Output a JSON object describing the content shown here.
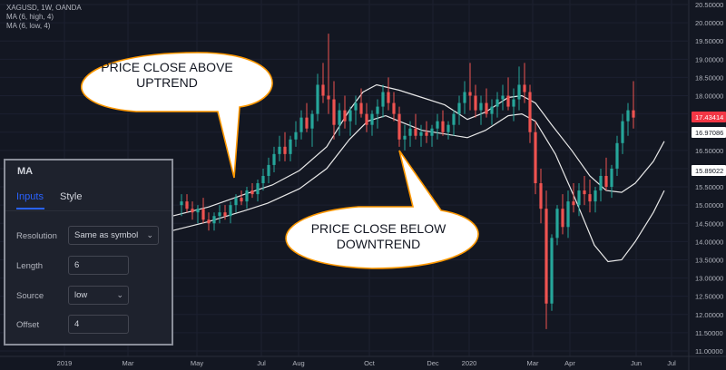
{
  "header": {
    "symbol": "XAGUSD, 1W, OANDA",
    "indicator_high": "MA (6, high, 4)",
    "indicator_low": "MA (6, low, 4)"
  },
  "chart_data": {
    "type": "candlestick",
    "y_range": [
      10.6,
      20.7
    ],
    "y_ticks": [
      "20.50000",
      "20.00000",
      "19.50000",
      "19.00000",
      "18.50000",
      "18.00000",
      "17.50000",
      "17.00000",
      "16.50000",
      "16.00000",
      "15.50000",
      "15.00000",
      "14.50000",
      "14.00000",
      "13.50000",
      "13.00000",
      "12.50000",
      "12.00000",
      "11.50000",
      "11.00000"
    ],
    "x_ticks": [
      "2019",
      "Mar",
      "May",
      "Jul",
      "Aug",
      "Oct",
      "Dec",
      "2020",
      "Mar",
      "Apr",
      "Jun",
      "Jul"
    ],
    "price_badges": [
      {
        "label": "17.43414",
        "bg": "#f23645",
        "fg": "#ffffff"
      },
      {
        "label": "16.97086",
        "bg": "#ffffff",
        "fg": "#131722"
      },
      {
        "label": "15.89022",
        "bg": "#ffffff",
        "fg": "#131722"
      }
    ],
    "up_color": "#26a69a",
    "down_color": "#ef5350",
    "ma_color": "#e8e8e8"
  },
  "callouts": {
    "upper_line1": "PRICE CLOSE ABOVE",
    "upper_line2": "UPTREND",
    "lower_line1": "PRICE CLOSE BELOW",
    "lower_line2": "DOWNTREND"
  },
  "settings_panel": {
    "title": "MA",
    "tab_inputs": "Inputs",
    "tab_style": "Style",
    "resolution_label": "Resolution",
    "resolution_value": "Same as symbol",
    "length_label": "Length",
    "length_value": "6",
    "source_label": "Source",
    "source_value": "low",
    "offset_label": "Offset",
    "offset_value": "4"
  }
}
